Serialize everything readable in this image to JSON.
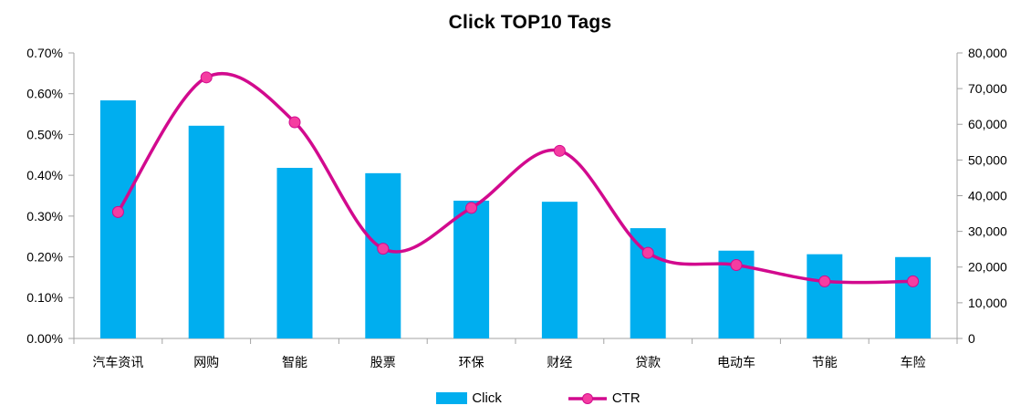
{
  "header": {
    "title": "Click TOP10 Tags"
  },
  "legend": {
    "items": [
      {
        "label": "Click",
        "swatch": "bar"
      },
      {
        "label": "CTR",
        "swatch": "line-marker"
      }
    ]
  },
  "colors": {
    "bar": "#00AEEF",
    "line": "#D20A8E",
    "marker": "#F53DA1",
    "axis_line": "#A3A3A3",
    "tick_text": "#000000",
    "title_text": "#000000",
    "background": "#FFFFFF"
  },
  "chart_data": {
    "type": "bar",
    "subtype": "bar+line combo, dual axis, smoothed line with round markers",
    "title": "Click TOP10 Tags",
    "categories": [
      "汽车资讯",
      "网购",
      "智能",
      "股票",
      "环保",
      "财经",
      "贷款",
      "电动车",
      "节能",
      "车险"
    ],
    "series": [
      {
        "name": "Click",
        "type": "bar",
        "axis": "right",
        "values": [
          66700,
          59600,
          47800,
          46300,
          38600,
          38300,
          30900,
          24600,
          23600,
          22800
        ]
      },
      {
        "name": "CTR",
        "type": "line",
        "axis": "left",
        "unit": "percent",
        "values": [
          0.31,
          0.64,
          0.53,
          0.22,
          0.32,
          0.46,
          0.21,
          0.18,
          0.14,
          0.14
        ]
      }
    ],
    "left_axis": {
      "min": 0,
      "max": 0.7,
      "step": 0.1,
      "tick_labels": [
        "0.00%",
        "0.10%",
        "0.20%",
        "0.30%",
        "0.40%",
        "0.50%",
        "0.60%",
        "0.70%"
      ]
    },
    "right_axis": {
      "min": 0,
      "max": 80000,
      "step": 10000,
      "tick_labels": [
        "0",
        "10,000",
        "20,000",
        "30,000",
        "40,000",
        "50,000",
        "60,000",
        "70,000",
        "80,000"
      ]
    },
    "xlabel": "",
    "ylabel": "",
    "grid": false,
    "legend_position": "bottom",
    "line_smooth": true
  }
}
